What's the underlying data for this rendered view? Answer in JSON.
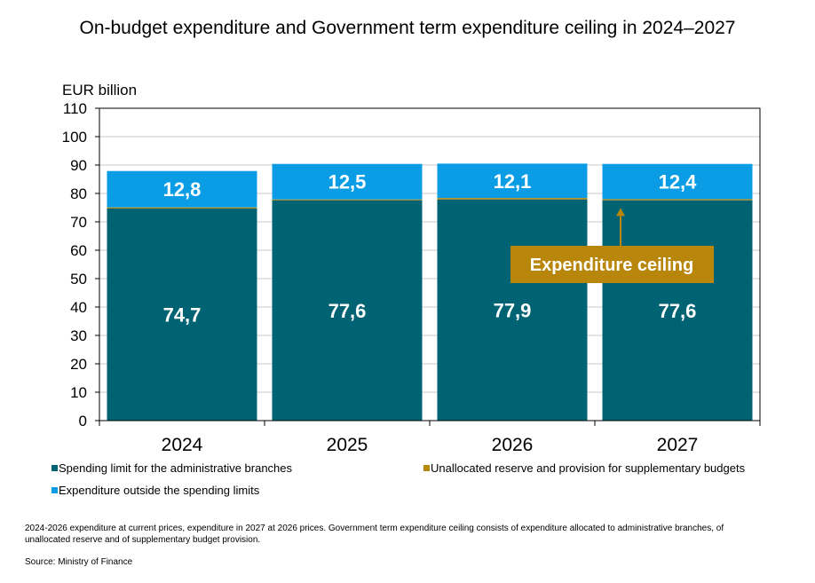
{
  "chart_data": {
    "type": "bar",
    "stacked": true,
    "title": "On-budget expenditure and Government term expenditure ceiling in 2024–2027",
    "ylabel": "EUR billion",
    "xlabel": "",
    "ylim": [
      0,
      110
    ],
    "yticks": [
      0,
      10,
      20,
      30,
      40,
      50,
      60,
      70,
      80,
      90,
      100,
      110
    ],
    "grid": true,
    "categories": [
      "2024",
      "2025",
      "2026",
      "2027"
    ],
    "series": [
      {
        "name": "Spending limit for the administrative branches",
        "color": "#006373",
        "values": [
          74.7,
          77.6,
          77.9,
          77.6
        ],
        "labels": [
          "74,7",
          "77,6",
          "77,9",
          "77,6"
        ]
      },
      {
        "name": "Unallocated reserve and provision for supplementary budgets",
        "color": "#b8880a",
        "values": [
          0.4,
          0.3,
          0.5,
          0.4
        ],
        "labels": [
          "",
          "",
          "",
          ""
        ]
      },
      {
        "name": "Expenditure outside the spending limits",
        "color": "#0a9de6",
        "values": [
          12.8,
          12.5,
          12.1,
          12.4
        ],
        "labels": [
          "12,8",
          "12,5",
          "12,1",
          "12,4"
        ]
      }
    ],
    "annotation": {
      "text": "Expenditure ceiling",
      "color": "#b8860b",
      "points_to": "2027"
    }
  },
  "footnote": "2024-2026 expenditure at current prices, expenditure in 2027 at 2026 prices. Government term expenditure ceiling consists of expenditure allocated to administrative branches, of unallocated reserve and of supplementary budget provision.",
  "source": "Source: Ministry of Finance"
}
